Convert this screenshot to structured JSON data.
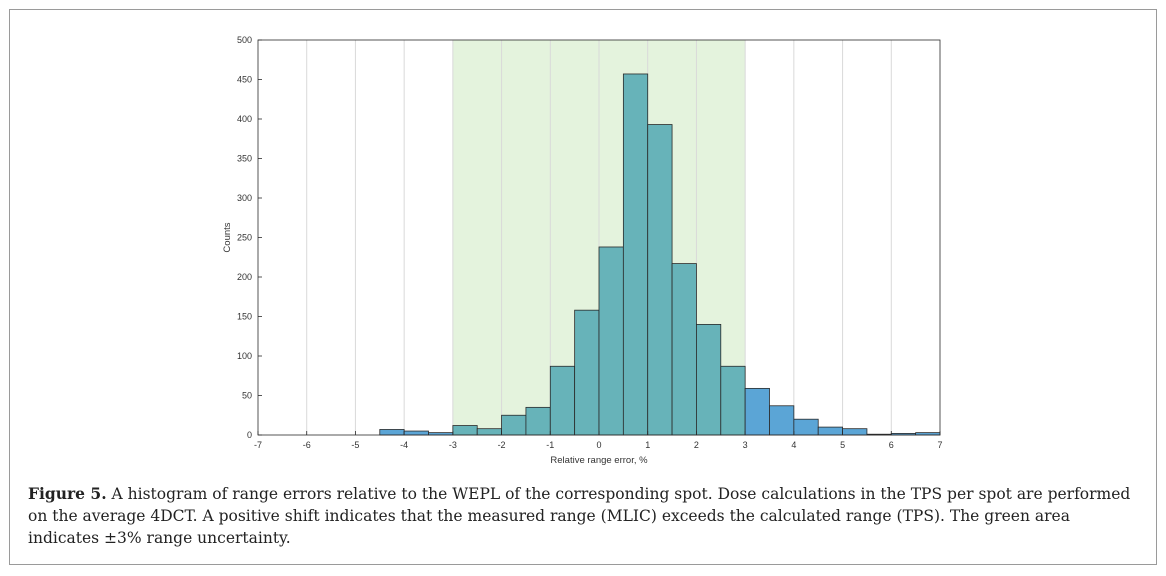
{
  "chart_data": {
    "type": "bar",
    "bin_edges": [
      -7,
      -6.5,
      -6,
      -5.5,
      -5,
      -4.5,
      -4,
      -3.5,
      -3,
      -2.5,
      -2,
      -1.5,
      -1,
      -0.5,
      0,
      0.5,
      1,
      1.5,
      2,
      2.5,
      3,
      3.5,
      4,
      4.5,
      5,
      5.5,
      6,
      6.5,
      7
    ],
    "values": [
      0,
      0,
      0,
      0,
      0,
      7,
      5,
      3,
      12,
      8,
      25,
      35,
      87,
      158,
      238,
      457,
      393,
      217,
      140,
      87,
      59,
      37,
      20,
      10,
      8,
      1,
      2,
      3
    ],
    "xlabel": "Relative range error, %",
    "ylabel": "Counts",
    "xlim": [
      -7,
      7
    ],
    "ylim": [
      0,
      500
    ],
    "xticks": [
      -7,
      -6,
      -5,
      -4,
      -3,
      -2,
      -1,
      0,
      1,
      2,
      3,
      4,
      5,
      6,
      7
    ],
    "yticks": [
      0,
      50,
      100,
      150,
      200,
      250,
      300,
      350,
      400,
      450,
      500
    ],
    "highlight_band": [
      -3,
      3
    ],
    "grid": "x",
    "colors": {
      "band": "#e4f3dd",
      "bar_inside": "#67b3b9",
      "bar_outside": "#5ba5d6",
      "bar_edge": "#2a2a2a",
      "grid": "#d9d9d9",
      "axis": "#2b2b2b"
    }
  },
  "caption": {
    "label": "Figure 5.",
    "text": " A histogram of range errors relative to the WEPL of the corresponding spot. Dose calculations in the TPS per spot are performed on the average 4DCT. A positive shift indicates that the measured range (MLIC) exceeds the calculated range (TPS). The green area indicates ±3% range uncertainty."
  }
}
